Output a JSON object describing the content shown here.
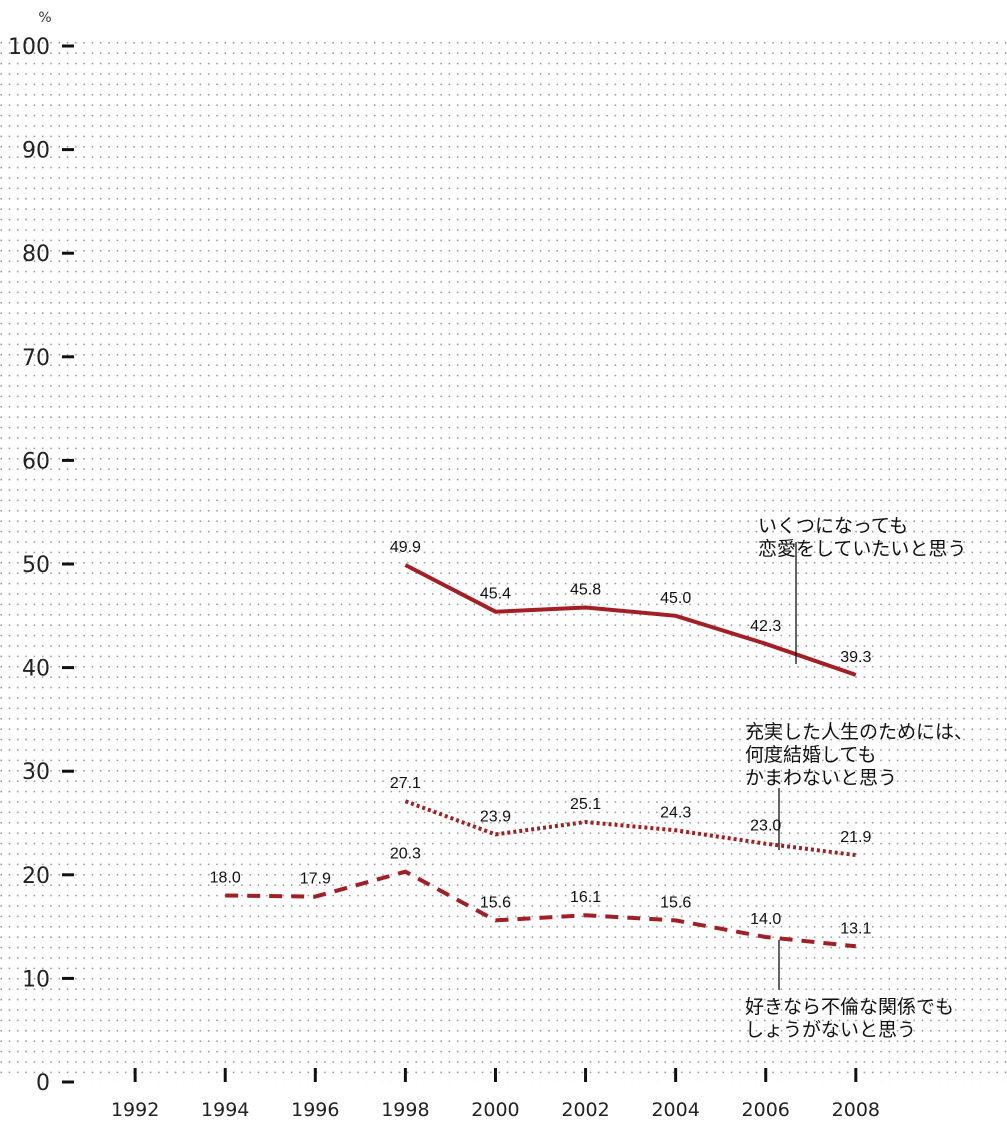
{
  "chart_data": {
    "type": "line",
    "unit": "%",
    "ylim": [
      0,
      100
    ],
    "yticks": [
      0,
      10,
      20,
      30,
      40,
      50,
      60,
      70,
      80,
      90,
      100
    ],
    "xlim": [
      1989,
      2012
    ],
    "xticks": [
      1992,
      1994,
      1996,
      1998,
      2000,
      2002,
      2004,
      2006,
      2008
    ],
    "grid": "dotted",
    "line_color": "#a31f24",
    "series": [
      {
        "name": "いくつになっても恋愛をしていたいと思う",
        "label_lines": [
          "いくつになっても",
          "恋愛をしていたいと思う"
        ],
        "style": "solid",
        "x": [
          1998,
          2000,
          2002,
          2004,
          2006,
          2008
        ],
        "values": [
          49.9,
          45.4,
          45.8,
          45.0,
          42.3,
          39.3
        ],
        "value_labels": [
          "49.9",
          "45.4",
          "45.8",
          "45.0",
          "42.3",
          "39.3"
        ]
      },
      {
        "name": "充実した人生のためには、何度結婚してもかまわないと思う",
        "label_lines": [
          "充実した人生のためには、",
          "何度結婚しても",
          "かまわないと思う"
        ],
        "style": "dotted",
        "x": [
          1998,
          2000,
          2002,
          2004,
          2006,
          2008
        ],
        "values": [
          27.1,
          23.9,
          25.1,
          24.3,
          23.0,
          21.9
        ],
        "value_labels": [
          "27.1",
          "23.9",
          "25.1",
          "24.3",
          "23.0",
          "21.9"
        ]
      },
      {
        "name": "好きなら不倫な関係でもしょうがないと思う",
        "label_lines": [
          "好きなら不倫な関係でも",
          "しょうがないと思う"
        ],
        "style": "dashed",
        "x": [
          1994,
          1996,
          1998,
          2000,
          2002,
          2004,
          2006,
          2008
        ],
        "values": [
          18.0,
          17.9,
          20.3,
          15.6,
          16.1,
          15.6,
          14.0,
          13.1
        ],
        "value_labels": [
          "18.0",
          "17.9",
          "20.3",
          "15.6",
          "16.1",
          "15.6",
          "14.0",
          "13.1"
        ]
      }
    ]
  }
}
